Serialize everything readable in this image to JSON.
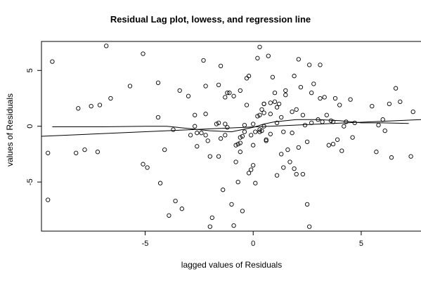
{
  "chart_data": {
    "type": "scatter",
    "title": "Residual Lag plot, lowess, and regression line",
    "xlabel": "lagged values of Residuals",
    "ylabel": "values of Residuals",
    "xlim": [
      -9.8,
      7.8
    ],
    "ylim": [
      -9.4,
      7.6
    ],
    "x_ticks": [
      -5,
      0,
      5
    ],
    "y_ticks": [
      -5,
      0,
      5
    ],
    "grid": false,
    "legend": "none",
    "regression_line": {
      "x": [
        -9.8,
        7.8
      ],
      "y": [
        -0.9,
        0.6
      ]
    },
    "lowess_line": {
      "x": [
        -9.3,
        -7,
        -5,
        -4,
        -3,
        -2,
        -1,
        0,
        0.5,
        1,
        2,
        3,
        4,
        5,
        6,
        7.2
      ],
      "y": [
        -0.05,
        -0.05,
        0.0,
        0.0,
        -0.2,
        -0.4,
        -0.5,
        -0.1,
        0.2,
        0.4,
        0.6,
        0.6,
        0.5,
        0.3,
        0.3,
        0.25
      ]
    },
    "series": [
      {
        "points": [
          [
            -9.3,
            5.8
          ],
          [
            -9.5,
            -2.4
          ],
          [
            -9.5,
            -6.6
          ],
          [
            -8.2,
            -2.4
          ],
          [
            -8.1,
            1.6
          ],
          [
            -7.8,
            -2.1
          ],
          [
            -7.5,
            1.8
          ],
          [
            -7.2,
            -2.3
          ],
          [
            -7.1,
            1.9
          ],
          [
            -6.8,
            7.2
          ],
          [
            -6.6,
            2.5
          ],
          [
            -5.7,
            3.6
          ],
          [
            -5.1,
            6.5
          ],
          [
            -5.1,
            -3.4
          ],
          [
            -4.9,
            -3.7
          ],
          [
            -4.4,
            0.8
          ],
          [
            -4.4,
            3.9
          ],
          [
            -4.3,
            -5.1
          ],
          [
            -4.1,
            -2.1
          ],
          [
            -3.9,
            -8.0
          ],
          [
            -3.7,
            -0.3
          ],
          [
            -3.6,
            -6.7
          ],
          [
            -3.4,
            3.2
          ],
          [
            -3.3,
            -7.4
          ],
          [
            -3.0,
            2.7
          ],
          [
            -2.9,
            -0.8
          ],
          [
            -2.7,
            1.0
          ],
          [
            -2.7,
            0.0
          ],
          [
            -2.6,
            -1.8
          ],
          [
            -2.6,
            -0.6
          ],
          [
            -2.4,
            -0.6
          ],
          [
            -2.3,
            5.9
          ],
          [
            -2.2,
            3.6
          ],
          [
            -2.2,
            1.1
          ],
          [
            -2.2,
            -0.8
          ],
          [
            -2.1,
            -1.3
          ],
          [
            -2.0,
            -2.7
          ],
          [
            -2.0,
            -9.0
          ],
          [
            -1.9,
            -8.2
          ],
          [
            -1.7,
            0.2
          ],
          [
            -1.6,
            -2.7
          ],
          [
            -1.6,
            0.3
          ],
          [
            -1.6,
            3.7
          ],
          [
            -1.5,
            5.4
          ],
          [
            -1.5,
            -1.1
          ],
          [
            -1.4,
            -5.7
          ],
          [
            -1.3,
            0.2
          ],
          [
            -1.3,
            -0.8
          ],
          [
            -1.3,
            2.6
          ],
          [
            -1.2,
            -0.1
          ],
          [
            -1.2,
            3.0
          ],
          [
            -1.1,
            3.0
          ],
          [
            -1.0,
            -7.0
          ],
          [
            -0.9,
            -8.9
          ],
          [
            -0.9,
            2.7
          ],
          [
            -0.8,
            -3.2
          ],
          [
            -0.8,
            -1.7
          ],
          [
            -0.7,
            -1.6
          ],
          [
            -0.7,
            -5.0
          ],
          [
            -0.6,
            -1.5
          ],
          [
            -0.6,
            -2.3
          ],
          [
            -0.6,
            -1.0
          ],
          [
            -0.6,
            3.2
          ],
          [
            -0.5,
            -7.6
          ],
          [
            -0.5,
            -0.9
          ],
          [
            -0.4,
            -0.5
          ],
          [
            -0.4,
            0.1
          ],
          [
            -0.3,
            1.9
          ],
          [
            -0.3,
            4.3
          ],
          [
            -0.2,
            -4.2
          ],
          [
            -0.2,
            4.5
          ],
          [
            -0.1,
            -0.8
          ],
          [
            -0.1,
            -3.9
          ],
          [
            0.0,
            -1.7
          ],
          [
            0.0,
            -3.5
          ],
          [
            0.0,
            0.2
          ],
          [
            0.1,
            -5.1
          ],
          [
            0.1,
            -0.5
          ],
          [
            0.2,
            6.1
          ],
          [
            0.2,
            0.9
          ],
          [
            0.3,
            1.0
          ],
          [
            0.3,
            -0.5
          ],
          [
            0.3,
            7.1
          ],
          [
            0.3,
            -0.3
          ],
          [
            0.4,
            1.5
          ],
          [
            0.4,
            -0.4
          ],
          [
            0.5,
            2.0
          ],
          [
            0.5,
            2.0
          ],
          [
            0.5,
            0.0
          ],
          [
            0.5,
            1.2
          ],
          [
            0.6,
            -1.2
          ],
          [
            0.6,
            -1.3
          ],
          [
            0.7,
            6.3
          ],
          [
            0.8,
            1.1
          ],
          [
            0.8,
            2.1
          ],
          [
            0.8,
            -0.7
          ],
          [
            0.9,
            4.4
          ],
          [
            1.0,
            3.0
          ],
          [
            1.0,
            2.2
          ],
          [
            1.1,
            -4.4
          ],
          [
            1.1,
            1.7
          ],
          [
            1.1,
            0.3
          ],
          [
            1.2,
            2.0
          ],
          [
            1.3,
            -2.5
          ],
          [
            1.3,
            0.8
          ],
          [
            1.4,
            -0.5
          ],
          [
            1.4,
            -3.7
          ],
          [
            1.5,
            2.8
          ],
          [
            1.5,
            3.2
          ],
          [
            1.6,
            -2.1
          ],
          [
            1.7,
            -3.2
          ],
          [
            1.8,
            -0.6
          ],
          [
            1.8,
            1.3
          ],
          [
            1.9,
            -3.8
          ],
          [
            1.9,
            4.5
          ],
          [
            2.0,
            1.5
          ],
          [
            2.0,
            -4.3
          ],
          [
            2.1,
            -1.9
          ],
          [
            2.1,
            6.0
          ],
          [
            2.2,
            3.5
          ],
          [
            2.3,
            1.0
          ],
          [
            2.3,
            -4.3
          ],
          [
            2.4,
            0.1
          ],
          [
            2.5,
            -1.4
          ],
          [
            2.5,
            -7.0
          ],
          [
            2.6,
            5.5
          ],
          [
            2.6,
            -9.0
          ],
          [
            2.7,
            3.0
          ],
          [
            2.7,
            0.3
          ],
          [
            2.8,
            3.8
          ],
          [
            3.0,
            0.6
          ],
          [
            3.1,
            2.5
          ],
          [
            3.1,
            5.5
          ],
          [
            3.2,
            0.4
          ],
          [
            3.3,
            2.6
          ],
          [
            3.4,
            1.0
          ],
          [
            3.5,
            -1.7
          ],
          [
            3.6,
            0.5
          ],
          [
            3.7,
            0.4
          ],
          [
            3.7,
            -1.6
          ],
          [
            3.8,
            2.5
          ],
          [
            3.9,
            -1.2
          ],
          [
            4.0,
            1.9
          ],
          [
            4.1,
            -2.2
          ],
          [
            4.2,
            0.0
          ],
          [
            4.3,
            0.4
          ],
          [
            4.5,
            2.4
          ],
          [
            4.6,
            -1.0
          ],
          [
            4.7,
            0.3
          ],
          [
            5.5,
            1.8
          ],
          [
            5.7,
            -2.3
          ],
          [
            5.8,
            0.1
          ],
          [
            6.0,
            0.6
          ],
          [
            6.1,
            -0.4
          ],
          [
            6.3,
            2.0
          ],
          [
            6.4,
            -2.8
          ],
          [
            6.6,
            3.4
          ],
          [
            6.8,
            2.2
          ],
          [
            7.3,
            -2.7
          ],
          [
            7.4,
            1.3
          ]
        ]
      }
    ]
  }
}
